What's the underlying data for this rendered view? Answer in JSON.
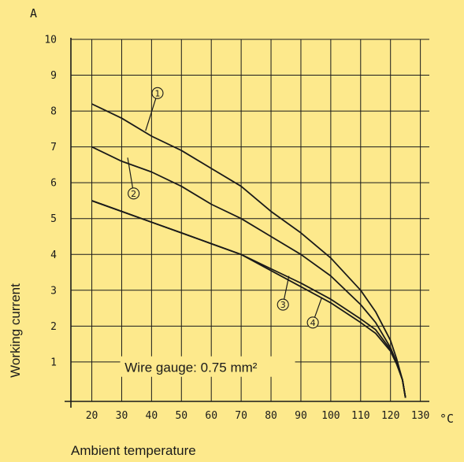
{
  "chart_data": {
    "type": "line",
    "xlabel": "Ambient temperature",
    "ylabel": "Working current",
    "x_unit": "°C",
    "y_unit": "A",
    "annotation": "Wire gauge: 0.75 mm²",
    "xlim": [
      13,
      133
    ],
    "ylim": [
      -0.1,
      10
    ],
    "x_ticks": [
      20,
      30,
      40,
      50,
      60,
      70,
      80,
      90,
      100,
      110,
      120,
      130
    ],
    "y_ticks": [
      1,
      2,
      3,
      4,
      5,
      6,
      7,
      8,
      9,
      10
    ],
    "grid": true,
    "background": "#fde98c",
    "line_color": "#1a1a1a",
    "series": [
      {
        "name": "1",
        "x": [
          20,
          30,
          40,
          50,
          60,
          70,
          80,
          90,
          100,
          110,
          115,
          120,
          122,
          124,
          125
        ],
        "y": [
          8.2,
          7.8,
          7.3,
          6.9,
          6.4,
          5.9,
          5.2,
          4.6,
          3.9,
          3.0,
          2.4,
          1.6,
          1.1,
          0.5,
          0.0
        ]
      },
      {
        "name": "2",
        "x": [
          20,
          30,
          40,
          50,
          60,
          70,
          80,
          90,
          100,
          110,
          115,
          120,
          122,
          124,
          125
        ],
        "y": [
          7.0,
          6.6,
          6.3,
          5.9,
          5.4,
          5.0,
          4.5,
          4.0,
          3.4,
          2.6,
          2.1,
          1.4,
          1.0,
          0.5,
          0.0
        ]
      },
      {
        "name": "3",
        "x": [
          20,
          30,
          40,
          50,
          60,
          70,
          80,
          90,
          100,
          110,
          115,
          120,
          122,
          124,
          125
        ],
        "y": [
          5.5,
          5.2,
          4.9,
          4.6,
          4.3,
          4.0,
          3.6,
          3.2,
          2.75,
          2.2,
          1.9,
          1.35,
          1.0,
          0.5,
          0.0
        ]
      },
      {
        "name": "4",
        "x": [
          20,
          30,
          40,
          50,
          60,
          70,
          80,
          90,
          100,
          110,
          115,
          120,
          122,
          124,
          125
        ],
        "y": [
          5.5,
          5.2,
          4.9,
          4.6,
          4.3,
          4.0,
          3.55,
          3.1,
          2.65,
          2.1,
          1.8,
          1.3,
          0.95,
          0.5,
          0.0
        ]
      }
    ],
    "series_labels": [
      {
        "text": "1",
        "circle_at": [
          42,
          8.5
        ],
        "leader_to": [
          38,
          7.45
        ]
      },
      {
        "text": "2",
        "circle_at": [
          34,
          5.7
        ],
        "leader_to": [
          32,
          6.7
        ]
      },
      {
        "text": "3",
        "circle_at": [
          84,
          2.6
        ],
        "leader_to": [
          86,
          3.4
        ]
      },
      {
        "text": "4",
        "circle_at": [
          94,
          2.1
        ],
        "leader_to": [
          97,
          2.8
        ]
      }
    ]
  }
}
